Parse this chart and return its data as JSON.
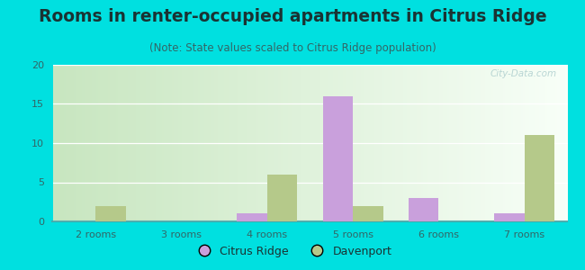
{
  "title": "Rooms in renter-occupied apartments in Citrus Ridge",
  "subtitle": "(Note: State values scaled to Citrus Ridge population)",
  "categories": [
    "2 rooms",
    "3 rooms",
    "4 rooms",
    "5 rooms",
    "6 rooms",
    "7 rooms"
  ],
  "citrus_ridge": [
    0,
    0,
    1,
    16,
    3,
    1
  ],
  "davenport": [
    2,
    0,
    6,
    2,
    0,
    11
  ],
  "citrus_ridge_color": "#c9a0dc",
  "davenport_color": "#b5c98a",
  "ylim": [
    0,
    20
  ],
  "yticks": [
    0,
    5,
    10,
    15,
    20
  ],
  "background_outer": "#00e0e0",
  "bar_width": 0.35,
  "title_fontsize": 13.5,
  "subtitle_fontsize": 8.5,
  "watermark": "City-Data.com",
  "gradient_left": "#c8e6c0",
  "gradient_right": "#f8fff8"
}
